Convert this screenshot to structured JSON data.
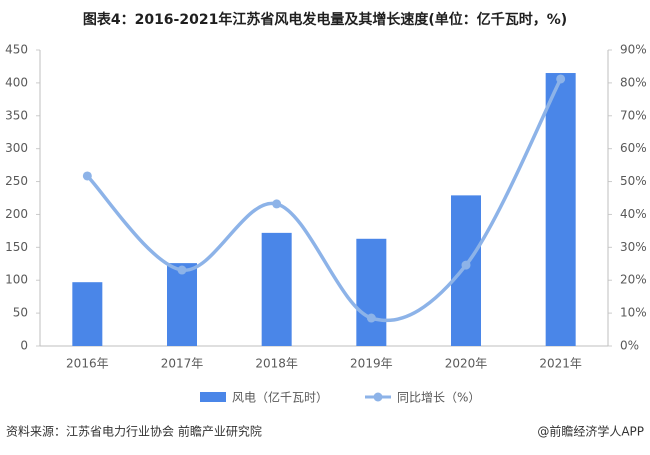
{
  "chart_data": {
    "type": "bar-line",
    "title": "图表4：2016-2021年江苏省风电发电量及其增长速度(单位：亿千瓦时，%)",
    "categories": [
      "2016年",
      "2017年",
      "2018年",
      "2019年",
      "2020年",
      "2021年"
    ],
    "series": [
      {
        "name": "风电（亿千瓦时）",
        "color": "#4a86e8",
        "type": "bar",
        "values": [
          97,
          126,
          172,
          163,
          229,
          415
        ]
      },
      {
        "name": "同比增长（%）",
        "color": "#8db3e8",
        "type": "line",
        "axis": "y2",
        "values": [
          51.7,
          23.1,
          43.2,
          8.5,
          24.6,
          81.2
        ]
      }
    ],
    "ylim": [
      0,
      450
    ],
    "yticks": [
      0,
      50,
      100,
      150,
      200,
      250,
      300,
      350,
      400,
      450
    ],
    "y2lim": [
      0,
      90
    ],
    "y2ticks": [
      {
        "value": 0,
        "label": "0%"
      },
      {
        "value": 10,
        "label": "10%"
      },
      {
        "value": 20,
        "label": "20%"
      },
      {
        "value": 30,
        "label": "30%"
      },
      {
        "value": 40,
        "label": "40%"
      },
      {
        "value": 50,
        "label": "50%"
      },
      {
        "value": 60,
        "label": "60%"
      },
      {
        "value": 70,
        "label": "70%"
      },
      {
        "value": 80,
        "label": "80%"
      },
      {
        "value": 90,
        "label": "90%"
      }
    ],
    "legend": "bottom",
    "source": "资料来源：江苏省电力行业协会 前瞻产业研究院",
    "credit": "@前瞻经济学人APP"
  }
}
